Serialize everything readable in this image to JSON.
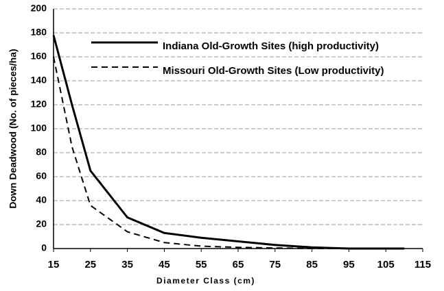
{
  "chart_data": {
    "type": "line",
    "x_label": "Diameter Class (cm)",
    "y_label": "Down Deadwood (No. of pieces/ha)",
    "x": [
      15,
      20,
      25,
      35,
      45,
      55,
      65,
      75,
      85,
      95,
      105,
      110
    ],
    "series": [
      {
        "name": "Indiana Old-Growth Sites (high productivity)",
        "color": "#000000",
        "line_style": "solid",
        "values": [
          178,
          120,
          65,
          26,
          13,
          9,
          6,
          3,
          1,
          0,
          0,
          0
        ]
      },
      {
        "name": "Missouri Old-Growth Sites (Low productivity)",
        "color": "#000000",
        "line_style": "dashed",
        "values": [
          160,
          85,
          36,
          14,
          5,
          2,
          1,
          0.5,
          0,
          0,
          0,
          0
        ]
      }
    ],
    "xlim": [
      15,
      115
    ],
    "xticks": [
      15,
      25,
      35,
      45,
      55,
      65,
      75,
      85,
      95,
      105,
      115
    ],
    "ylim": [
      0,
      200
    ],
    "yticks": [
      0,
      20,
      40,
      60,
      80,
      100,
      120,
      140,
      160,
      180,
      200
    ],
    "grid": true,
    "legend_position": "top-right"
  }
}
